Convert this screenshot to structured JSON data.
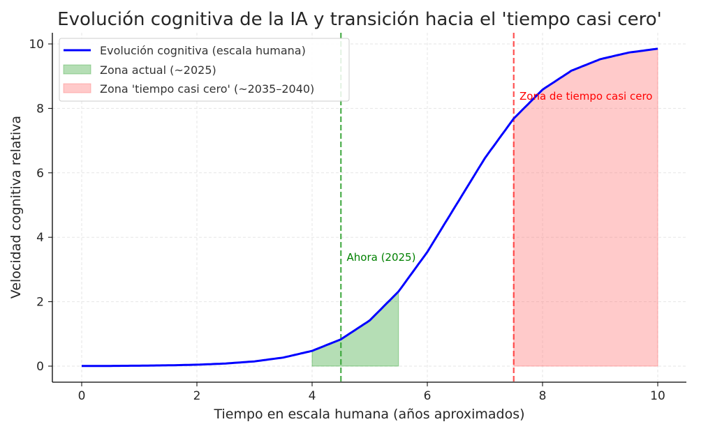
{
  "chart_data": {
    "type": "line",
    "title": "Evolución cognitiva de la IA y transición hacia el 'tiempo casi cero'",
    "xlabel": "Tiempo en escala humana (años aproximados)",
    "ylabel": "Velocidad cognitiva relativa",
    "xlim": [
      -0.5,
      10.5
    ],
    "ylim": [
      -0.5,
      10.35
    ],
    "xticks": [
      "0",
      "2",
      "4",
      "6",
      "8",
      "10"
    ],
    "yticks": [
      "0",
      "2",
      "4",
      "6",
      "8",
      "10"
    ],
    "grid": true,
    "legend_position": "top-left",
    "series": [
      {
        "name": "Evolución cognitiva (escala humana)",
        "color": "#0000ff",
        "x": [
          0,
          0.5,
          1,
          1.5,
          2,
          2.5,
          3,
          3.5,
          4,
          4.5,
          5,
          5.5,
          6,
          6.5,
          7,
          7.5,
          8,
          8.5,
          9,
          9.5,
          10
        ],
        "y": [
          0.004,
          0.0075,
          0.014,
          0.025,
          0.045,
          0.082,
          0.148,
          0.266,
          0.474,
          0.832,
          1.419,
          2.315,
          3.543,
          5.0,
          6.457,
          7.685,
          8.581,
          9.168,
          9.526,
          9.734,
          9.852
        ]
      }
    ],
    "regions": [
      {
        "name": "Zona actual (~2025)",
        "x_from": 4,
        "x_to": 5.5,
        "color": "#2ca02c"
      },
      {
        "name": "Zona 'tiempo casi cero' (~2035–2040)",
        "x_from": 7.5,
        "x_to": 10,
        "color": "#ff6666"
      }
    ],
    "vlines": [
      {
        "x": 4.5,
        "color": "#2ca02c"
      },
      {
        "x": 7.5,
        "color": "#ff3333"
      }
    ],
    "annotations": [
      {
        "text": "Ahora (2025)",
        "x": 4.6,
        "y": 3.4,
        "color": "#008000"
      },
      {
        "text": "Zona de tiempo casi cero",
        "x": 7.6,
        "y": 8.4,
        "color": "#ff0000"
      }
    ]
  }
}
